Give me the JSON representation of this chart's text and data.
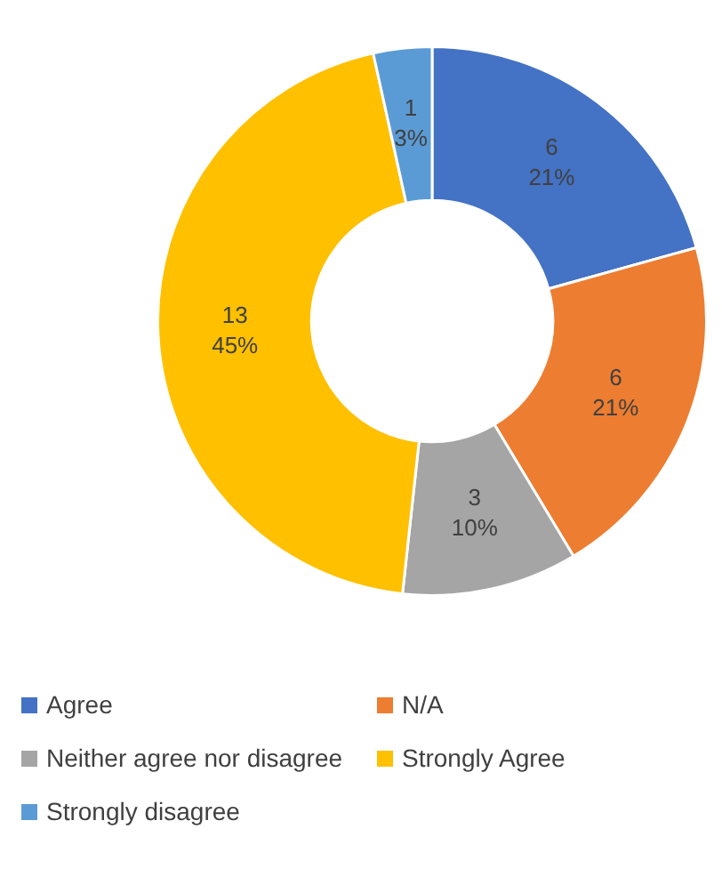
{
  "chart_data": {
    "type": "donut",
    "categories": [
      "Agree",
      "N/A",
      "Neither agree nor disagree",
      "Strongly Agree",
      "Strongly disagree"
    ],
    "values": [
      6,
      6,
      3,
      13,
      1
    ],
    "colors": [
      "#4472c4",
      "#ed7d31",
      "#a5a5a5",
      "#ffc000",
      "#5b9bd5"
    ],
    "value_labels": [
      "6\n21%",
      "6\n21%",
      "3\n10%",
      "13\n45%",
      "1\n3%"
    ],
    "legend": "bottom"
  }
}
